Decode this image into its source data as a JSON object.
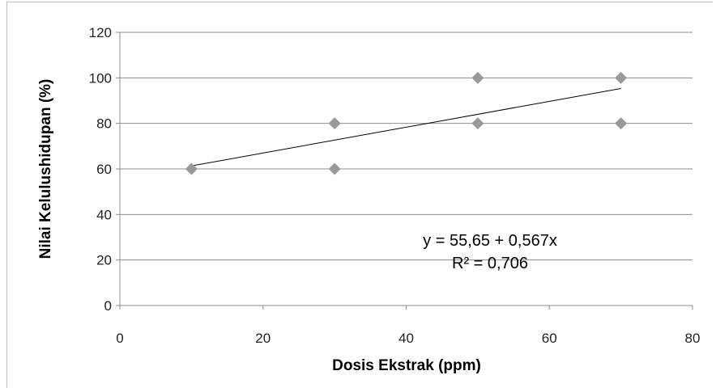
{
  "chart_data": {
    "type": "scatter",
    "xlabel": "Dosis Ekstrak (ppm)",
    "ylabel": "Nilai Kelulushidupan (%)",
    "xlim": [
      0,
      80
    ],
    "ylim": [
      0,
      120
    ],
    "x_ticks": [
      0,
      20,
      40,
      60,
      80
    ],
    "y_ticks": [
      0,
      20,
      40,
      60,
      80,
      100,
      120
    ],
    "x_tick_labels": [
      "0",
      "20",
      "40",
      "60",
      "80"
    ],
    "y_tick_labels": [
      "0",
      "20",
      "40",
      "60",
      "80",
      "100",
      "120"
    ],
    "grid": "horizontal",
    "marker": "diamond",
    "marker_color": "#999999",
    "series": [
      {
        "points": [
          {
            "x": 10,
            "y": 60
          },
          {
            "x": 30,
            "y": 80
          },
          {
            "x": 30,
            "y": 60
          },
          {
            "x": 50,
            "y": 100
          },
          {
            "x": 50,
            "y": 80
          },
          {
            "x": 70,
            "y": 100
          },
          {
            "x": 70,
            "y": 80
          }
        ]
      }
    ],
    "trendline": {
      "type": "linear",
      "intercept": 55.65,
      "slope": 0.567,
      "x_range": [
        10,
        70
      ]
    },
    "annotations": {
      "equation": "y = 55,65 + 0,567x",
      "r_squared": "R² = 0,706"
    }
  }
}
